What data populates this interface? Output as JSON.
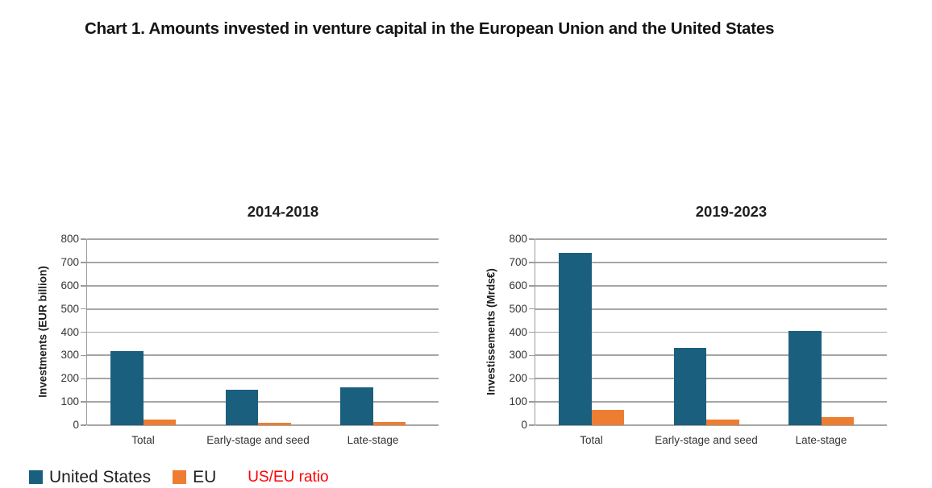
{
  "page": {
    "title": "Chart 1. Amounts invested in venture capital in the European Union and the United States"
  },
  "legend": {
    "items": [
      {
        "label": "United States",
        "color": "#1B5F7E"
      },
      {
        "label": "EU",
        "color": "#ED7D31"
      }
    ],
    "ratio_label": "US/EU ratio",
    "ratio_color": "#FF0000"
  },
  "chart_data": [
    {
      "type": "bar",
      "title": "2014-2018",
      "ylabel": "Investments (EUR billion)",
      "xlabel": "",
      "categories": [
        "Total",
        "Early-stage and seed",
        "Late-stage"
      ],
      "series": [
        {
          "name": "United States",
          "color": "#1B5F7E",
          "values": [
            317,
            153,
            164
          ]
        },
        {
          "name": "EU",
          "color": "#ED7D31",
          "values": [
            23,
            9,
            14
          ]
        }
      ],
      "ylim": [
        0,
        800
      ],
      "ytick_step": 100,
      "grid": true,
      "legend_position": "bottom-left"
    },
    {
      "type": "bar",
      "title": "2019-2023",
      "ylabel": "Investissements (Mrds€)",
      "xlabel": "",
      "categories": [
        "Total",
        "Early-stage and seed",
        "Late-stage"
      ],
      "series": [
        {
          "name": "United States",
          "color": "#1B5F7E",
          "values": [
            740,
            331,
            404
          ]
        },
        {
          "name": "EU",
          "color": "#ED7D31",
          "values": [
            65,
            26,
            36
          ]
        }
      ],
      "ylim": [
        0,
        800
      ],
      "ytick_step": 100,
      "grid": true,
      "legend_position": "bottom-left"
    }
  ],
  "style": {
    "gridline_color": "#A6A6A6",
    "axis_color": "#9B9B9B",
    "tick_text_color": "#333333",
    "title_color": "#141414"
  }
}
